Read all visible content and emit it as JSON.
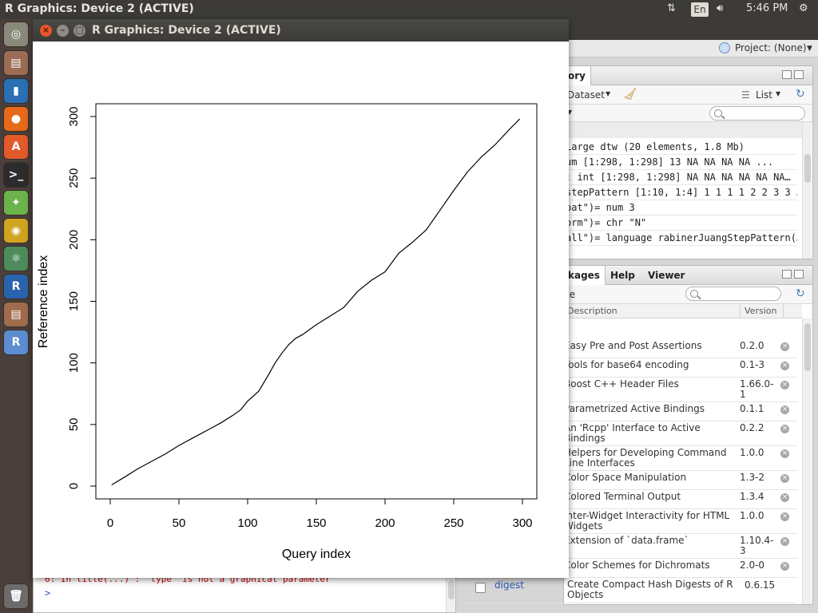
{
  "topbar": {
    "title": "R Graphics: Device 2 (ACTIVE)",
    "lang": "En",
    "time": "5:46 PM"
  },
  "launcher": {
    "icons": [
      "ubuntu-dash-icon",
      "file-manager-icon",
      "libreoffice-writer-icon",
      "firefox-icon",
      "software-center-icon",
      "terminal-icon",
      "android-studio-icon",
      "chrome-icon",
      "atom-icon",
      "r-icon",
      "file-manager-icon-2",
      "rstudio-icon",
      "trash-icon"
    ]
  },
  "rstudio": {
    "project_label": "Project: (None)",
    "env_pane": {
      "tab_label": "ory",
      "dataset_label": "Dataset",
      "list_label": "List",
      "lines": [
        "Large dtw (20 elements, 1.8 Mb)",
        "um [1:298, 1:298] 13 NA NA NA NA ...",
        ": int [1:298, 1:298] NA NA NA NA NA NA…",
        "stepPattern [1:10, 1:4] 1 1 1 1 2 2 3 3 …",
        "pat\")= num 3",
        "orm\")= chr \"N\"",
        "all\")= language rabinerJuangStepPattern(…"
      ]
    },
    "pkg_pane": {
      "tabs": [
        "kages",
        "Help",
        "Viewer"
      ],
      "toolbar_fragment": "te",
      "col_description": "Description",
      "col_version": "Version",
      "rows": [
        {
          "desc": "Easy Pre and Post Assertions",
          "ver": "0.2.0"
        },
        {
          "desc": "Tools for base64 encoding",
          "ver": "0.1-3"
        },
        {
          "desc": "Boost C++ Header Files",
          "ver": "1.66.0-1"
        },
        {
          "desc": "Parametrized Active Bindings",
          "ver": "0.1.1"
        },
        {
          "desc": "An 'Rcpp' Interface to Active Bindings",
          "ver": "0.2.2"
        },
        {
          "desc": "Helpers for Developing Command Line Interfaces",
          "ver": "1.0.0"
        },
        {
          "desc": "Color Space Manipulation",
          "ver": "1.3-2"
        },
        {
          "desc": "Colored Terminal Output",
          "ver": "1.3.4"
        },
        {
          "desc": "Inter-Widget Interactivity for HTML Widgets",
          "ver": "1.0.0"
        },
        {
          "desc": "Extension of `data.frame`",
          "ver": "1.10.4-3"
        },
        {
          "desc": "Color Schemes for Dichromats",
          "ver": "2.0-0"
        }
      ],
      "last_row": {
        "name": "digest",
        "desc": "Create Compact Hash Digests of R Objects",
        "ver": "0.6.15"
      }
    },
    "console": {
      "warning": "6: In title(...) :  \"type\" is not a graphical parameter",
      "prompt": ">"
    }
  },
  "graphics": {
    "window_title": "R Graphics: Device 2 (ACTIVE)"
  },
  "chart_data": {
    "type": "line",
    "xlabel": "Query index",
    "ylabel": "Reference index",
    "xlim": [
      0,
      300
    ],
    "ylim": [
      0,
      300
    ],
    "xticks": [
      0,
      50,
      100,
      150,
      200,
      250,
      300
    ],
    "yticks": [
      0,
      50,
      100,
      150,
      200,
      250,
      300
    ],
    "grid": false,
    "x": [
      1,
      10,
      20,
      30,
      40,
      50,
      60,
      70,
      80,
      90,
      95,
      100,
      108,
      115,
      120,
      125,
      130,
      135,
      140,
      150,
      160,
      170,
      180,
      190,
      200,
      210,
      220,
      230,
      240,
      250,
      260,
      270,
      280,
      290,
      298
    ],
    "y": [
      1,
      7,
      14,
      20,
      26,
      33,
      39,
      45,
      51,
      58,
      62,
      69,
      77,
      90,
      100,
      108,
      115,
      120,
      123,
      131,
      138,
      145,
      158,
      167,
      174,
      189,
      198,
      208,
      224,
      240,
      255,
      267,
      277,
      289,
      298
    ]
  }
}
